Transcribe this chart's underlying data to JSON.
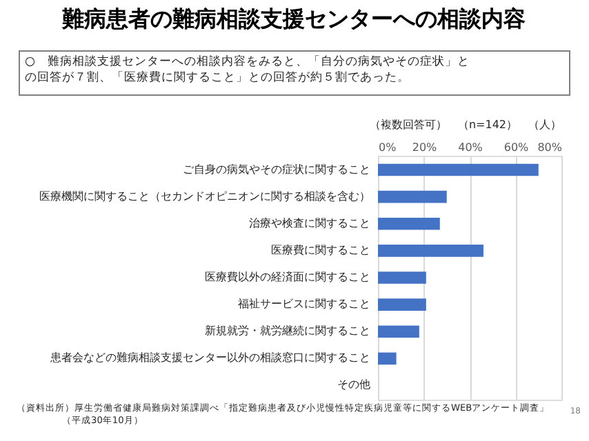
{
  "chart_data": {
    "type": "bar",
    "orientation": "horizontal",
    "title": "難病患者の難病相談支援センターへの相談内容",
    "subtitle": "○　難病相談支援センターへの相談内容をみると、「自分の病気やその症状」との回答が７割、「医療費に関すること」との回答が約５割であった。",
    "categories": [
      "ご自身の病気やその症状に関すること",
      "医療機関に関すること（セカンドオピニオンに関する相談を含む）",
      "治療や検査に関すること",
      "医療費に関すること",
      "医療費以外の経済面に関すること",
      "福祉サービスに関すること",
      "新規就労・就労継続に関すること",
      "患者会などの難病相談支援センター以外の相談窓口に関すること",
      "その他"
    ],
    "values": [
      70,
      30,
      27,
      46,
      21,
      21,
      18,
      8,
      0
    ],
    "color": "#4472c4",
    "xlim": [
      0,
      80
    ],
    "xticks": [
      {
        "value": 0,
        "label": "0%"
      },
      {
        "value": 20,
        "label": "20%"
      },
      {
        "value": 40,
        "label": "40%"
      },
      {
        "value": 60,
        "label": "60%"
      },
      {
        "value": 80,
        "label": "80%"
      }
    ],
    "grid": "x",
    "annotations": [
      "（複数回答可）　（n=142）　（人）",
      "（資料出所）厚生労働省健康局難病対策課調べ「指定難病患者及び小児慢性特定疾病児童等に関するWEBアンケート調査」",
      "（平成30年10月）",
      "18"
    ]
  }
}
